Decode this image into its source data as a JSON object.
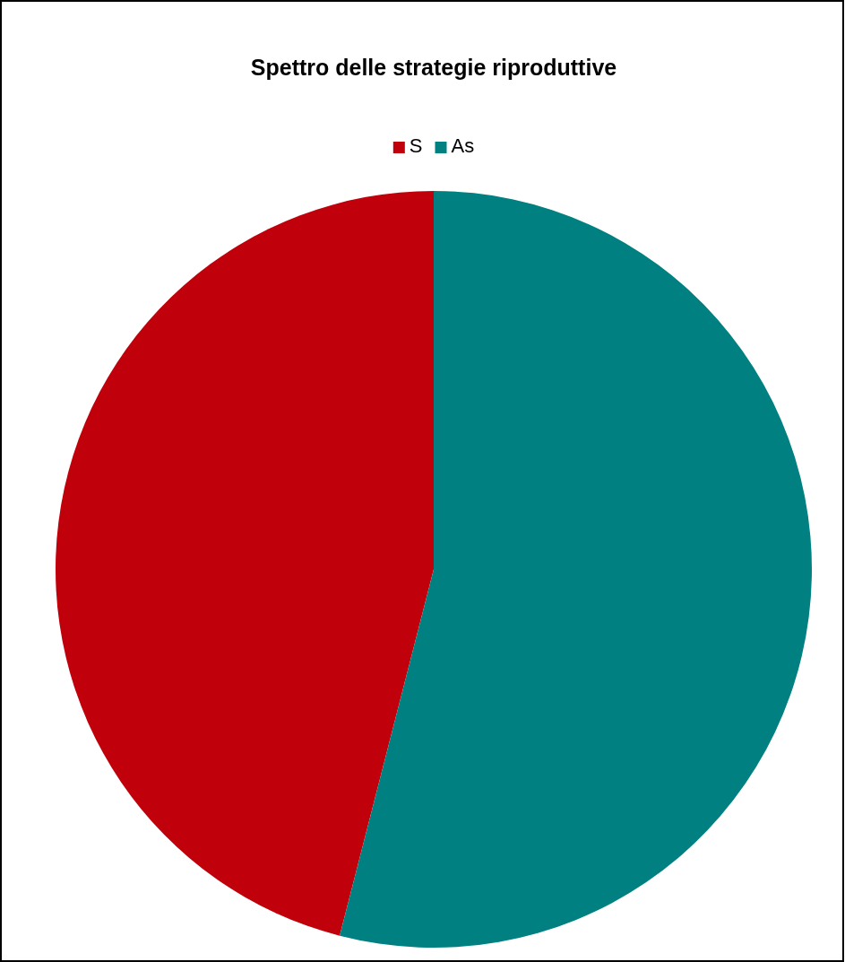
{
  "chart_data": {
    "type": "pie",
    "title": "Spettro delle strategie riproduttive",
    "categories": [
      "S",
      "As"
    ],
    "values": [
      46,
      54
    ],
    "colors": [
      "#c0000b",
      "#008080"
    ],
    "legend": "top"
  }
}
